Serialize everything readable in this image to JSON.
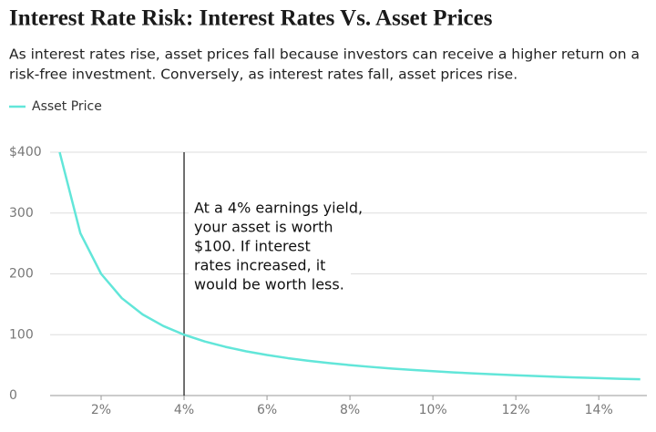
{
  "chart_data": {
    "type": "line",
    "title": "Interest Rate Risk: Interest Rates Vs. Asset Prices",
    "subtitle": [
      "As interest rates rise, asset prices fall because investors can receive a higher return on a",
      "risk-free investment. Conversely, as interest rates fall, asset prices rise."
    ],
    "x": [
      1,
      1.5,
      2,
      2.5,
      3,
      3.5,
      4,
      4.5,
      5,
      5.5,
      6,
      6.5,
      7,
      7.5,
      8,
      8.5,
      9,
      9.5,
      10,
      10.5,
      11,
      11.5,
      12,
      12.5,
      13,
      13.5,
      14,
      14.5,
      15
    ],
    "series": [
      {
        "name": "Asset Price",
        "color": "#62e6d9",
        "values": [
          400,
          266.7,
          200,
          160,
          133.3,
          114.3,
          100,
          88.9,
          80,
          72.7,
          66.7,
          61.5,
          57.1,
          53.3,
          50,
          47.1,
          44.4,
          42.1,
          40,
          38.1,
          36.4,
          34.8,
          33.3,
          32,
          30.8,
          29.6,
          28.6,
          27.6,
          26.7
        ]
      }
    ],
    "xlim": [
      0.77,
      15.16
    ],
    "xticks": [
      {
        "value": 2,
        "label": "2%"
      },
      {
        "value": 4,
        "label": "4%"
      },
      {
        "value": 6,
        "label": "6%"
      },
      {
        "value": 8,
        "label": "8%"
      },
      {
        "value": 10,
        "label": "10%"
      },
      {
        "value": 12,
        "label": "12%"
      },
      {
        "value": 14,
        "label": "14%"
      }
    ],
    "ylim": [
      0,
      400
    ],
    "yticks": [
      0,
      100,
      200,
      300,
      {
        "value": 400,
        "label": "$400"
      }
    ],
    "grid": true,
    "annotation": {
      "x": 4,
      "lines": [
        "At a 4% earnings yield,",
        "your asset is worth",
        "$100. If interest",
        "rates increased, it",
        "would be worth less."
      ]
    }
  }
}
